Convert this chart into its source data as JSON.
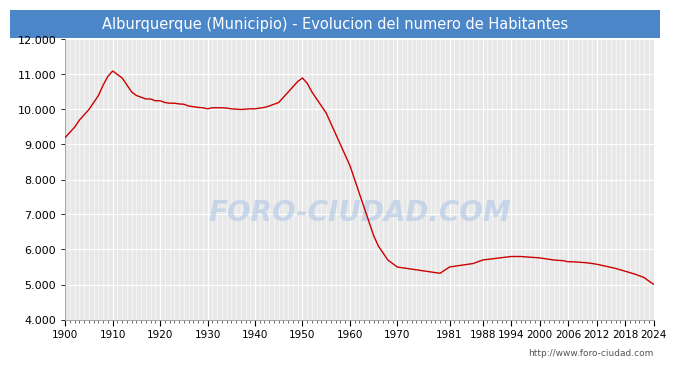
{
  "title": "Alburquerque (Municipio) - Evolucion del numero de Habitantes",
  "title_bg_color": "#4a86c8",
  "title_text_color": "#ffffff",
  "plot_bg_color": "#e8e8e8",
  "fig_bg_color": "#ffffff",
  "line_color": "#cc0000",
  "ylim": [
    4000,
    12000
  ],
  "yticks": [
    4000,
    5000,
    6000,
    7000,
    8000,
    9000,
    10000,
    11000,
    12000
  ],
  "xtick_labels": [
    "1900",
    "1910",
    "1920",
    "1930",
    "1940",
    "1950",
    "1960",
    "1970",
    "1981",
    "1988",
    "1994",
    "2000",
    "2006",
    "2012",
    "2018",
    "2024"
  ],
  "xtick_years": [
    1900,
    1910,
    1920,
    1930,
    1940,
    1950,
    1960,
    1970,
    1981,
    1988,
    1994,
    2000,
    2006,
    2012,
    2018,
    2024
  ],
  "watermark": "FORO-CIUDAD.COM",
  "url": "http://www.foro-ciudad.com",
  "years": [
    1900,
    1901,
    1902,
    1903,
    1904,
    1905,
    1906,
    1907,
    1908,
    1909,
    1910,
    1911,
    1912,
    1913,
    1914,
    1915,
    1916,
    1917,
    1918,
    1919,
    1920,
    1921,
    1922,
    1923,
    1924,
    1925,
    1926,
    1927,
    1928,
    1929,
    1930,
    1931,
    1932,
    1933,
    1934,
    1935,
    1936,
    1937,
    1938,
    1939,
    1940,
    1941,
    1942,
    1943,
    1944,
    1945,
    1946,
    1947,
    1948,
    1949,
    1950,
    1951,
    1952,
    1953,
    1954,
    1955,
    1956,
    1957,
    1958,
    1959,
    1960,
    1961,
    1962,
    1963,
    1964,
    1965,
    1966,
    1967,
    1968,
    1969,
    1970,
    1971,
    1972,
    1973,
    1974,
    1975,
    1976,
    1977,
    1978,
    1979,
    1981,
    1986,
    1988,
    1991,
    1994,
    1996,
    1998,
    1999,
    2000,
    2001,
    2002,
    2003,
    2004,
    2005,
    2006,
    2007,
    2008,
    2009,
    2010,
    2011,
    2012,
    2013,
    2014,
    2015,
    2016,
    2017,
    2018,
    2019,
    2020,
    2021,
    2022,
    2023,
    2024
  ],
  "population": [
    9200,
    9350,
    9500,
    9700,
    9850,
    10000,
    10200,
    10400,
    10700,
    10950,
    11100,
    11000,
    10900,
    10700,
    10500,
    10400,
    10350,
    10300,
    10300,
    10250,
    10250,
    10200,
    10180,
    10180,
    10160,
    10150,
    10100,
    10080,
    10060,
    10050,
    10020,
    10050,
    10050,
    10050,
    10040,
    10020,
    10010,
    10000,
    10010,
    10020,
    10020,
    10040,
    10060,
    10100,
    10150,
    10200,
    10350,
    10500,
    10650,
    10800,
    10900,
    10750,
    10500,
    10300,
    10100,
    9900,
    9600,
    9300,
    9000,
    8700,
    8400,
    8000,
    7600,
    7200,
    6800,
    6400,
    6100,
    5900,
    5700,
    5600,
    5500,
    5480,
    5460,
    5440,
    5420,
    5400,
    5380,
    5360,
    5340,
    5320,
    5500,
    5600,
    5700,
    5750,
    5800,
    5800,
    5780,
    5770,
    5760,
    5740,
    5720,
    5700,
    5690,
    5680,
    5650,
    5650,
    5640,
    5630,
    5620,
    5600,
    5580,
    5550,
    5520,
    5490,
    5460,
    5420,
    5380,
    5340,
    5300,
    5250,
    5200,
    5100,
    5010
  ]
}
